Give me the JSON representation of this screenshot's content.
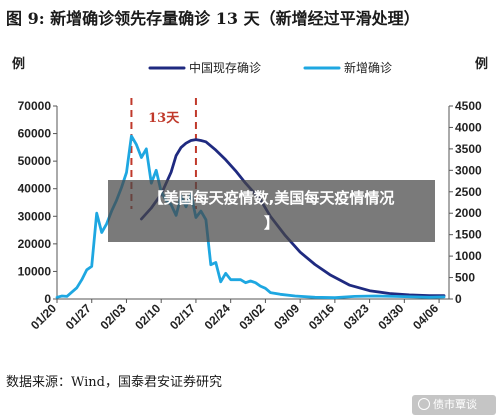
{
  "title": "图 9: 新增确诊领先存量确诊 13 天（新增经过平滑处理）",
  "source": "数据来源：Wind，国泰君安证券研究",
  "banner": {
    "line1": "【美国每天疫情数,美国每天疫情情况",
    "line2": "】"
  },
  "watermark": {
    "text": "债市覃谈",
    "icon": "wechat-icon"
  },
  "chart_data": {
    "type": "line",
    "left_unit": "例",
    "right_unit": "例",
    "legend_position": "top-center",
    "grid": false,
    "x": {
      "start": "2020-01-20",
      "end": "2020-04-08",
      "ticks": [
        "01/20",
        "01/27",
        "02/03",
        "02/10",
        "02/17",
        "02/24",
        "03/02",
        "03/09",
        "03/16",
        "03/23",
        "03/30",
        "04/06"
      ]
    },
    "y_left": {
      "min": 0,
      "max": 70000,
      "ticks": [
        "0",
        "10000",
        "20000",
        "30000",
        "40000",
        "50000",
        "60000",
        "70000"
      ]
    },
    "y_right": {
      "min": 0,
      "max": 4500,
      "ticks": [
        "0",
        "500",
        "1000",
        "1500",
        "2000",
        "2500",
        "3000",
        "3500",
        "4000",
        "4500"
      ]
    },
    "annotation": {
      "label": "13天",
      "from": "2020-02-04",
      "to": "2020-02-17",
      "color": "#c0392b"
    },
    "series": [
      {
        "name": "中国现存确诊",
        "axis": "left",
        "color": "#1f2a80",
        "points": [
          [
            "2020-02-06",
            29000
          ],
          [
            "2020-02-08",
            33000
          ],
          [
            "2020-02-10",
            38000
          ],
          [
            "2020-02-12",
            46000
          ],
          [
            "2020-02-13",
            52000
          ],
          [
            "2020-02-14",
            55000
          ],
          [
            "2020-02-15",
            56500
          ],
          [
            "2020-02-16",
            57500
          ],
          [
            "2020-02-17",
            57800
          ],
          [
            "2020-02-18",
            57500
          ],
          [
            "2020-02-19",
            57000
          ],
          [
            "2020-02-21",
            54000
          ],
          [
            "2020-02-23",
            50500
          ],
          [
            "2020-02-25",
            46500
          ],
          [
            "2020-02-27",
            42000
          ],
          [
            "2020-03-01",
            36000
          ],
          [
            "2020-03-03",
            30000
          ],
          [
            "2020-03-06",
            23000
          ],
          [
            "2020-03-09",
            17000
          ],
          [
            "2020-03-12",
            12500
          ],
          [
            "2020-03-15",
            8800
          ],
          [
            "2020-03-19",
            5000
          ],
          [
            "2020-03-23",
            3000
          ],
          [
            "2020-03-27",
            2000
          ],
          [
            "2020-03-31",
            1500
          ],
          [
            "2020-04-04",
            1200
          ],
          [
            "2020-04-07",
            1200
          ]
        ]
      },
      {
        "name": "新增确诊",
        "axis": "right",
        "color": "#1ea7e1",
        "points": [
          [
            "2020-01-20",
            40
          ],
          [
            "2020-01-21",
            70
          ],
          [
            "2020-01-22",
            60
          ],
          [
            "2020-01-23",
            160
          ],
          [
            "2020-01-24",
            260
          ],
          [
            "2020-01-25",
            450
          ],
          [
            "2020-01-26",
            680
          ],
          [
            "2020-01-27",
            760
          ],
          [
            "2020-01-28",
            2000
          ],
          [
            "2020-01-29",
            1550
          ],
          [
            "2020-01-30",
            1750
          ],
          [
            "2020-01-31",
            2050
          ],
          [
            "2020-02-01",
            2300
          ],
          [
            "2020-02-02",
            2600
          ],
          [
            "2020-02-03",
            2950
          ],
          [
            "2020-02-04",
            3800
          ],
          [
            "2020-02-05",
            3600
          ],
          [
            "2020-02-06",
            3300
          ],
          [
            "2020-02-07",
            3500
          ],
          [
            "2020-02-08",
            2700
          ],
          [
            "2020-02-09",
            3000
          ],
          [
            "2020-02-10",
            2500
          ],
          [
            "2020-02-11",
            2300
          ],
          [
            "2020-02-12",
            2200
          ],
          [
            "2020-02-13",
            1950
          ],
          [
            "2020-02-14",
            2400
          ],
          [
            "2020-02-15",
            2150
          ],
          [
            "2020-02-16",
            2450
          ],
          [
            "2020-02-17",
            1900
          ],
          [
            "2020-02-18",
            2050
          ],
          [
            "2020-02-19",
            1850
          ],
          [
            "2020-02-20",
            800
          ],
          [
            "2020-02-21",
            850
          ],
          [
            "2020-02-22",
            400
          ],
          [
            "2020-02-23",
            600
          ],
          [
            "2020-02-24",
            450
          ],
          [
            "2020-02-25",
            450
          ],
          [
            "2020-02-26",
            450
          ],
          [
            "2020-02-27",
            380
          ],
          [
            "2020-02-28",
            420
          ],
          [
            "2020-02-29",
            380
          ],
          [
            "2020-03-01",
            300
          ],
          [
            "2020-03-02",
            250
          ],
          [
            "2020-03-03",
            150
          ],
          [
            "2020-03-05",
            110
          ],
          [
            "2020-03-08",
            70
          ],
          [
            "2020-03-12",
            40
          ],
          [
            "2020-03-16",
            30
          ],
          [
            "2020-03-20",
            60
          ],
          [
            "2020-03-24",
            70
          ],
          [
            "2020-03-28",
            60
          ],
          [
            "2020-04-01",
            50
          ],
          [
            "2020-04-04",
            40
          ],
          [
            "2020-04-07",
            50
          ]
        ]
      }
    ]
  }
}
